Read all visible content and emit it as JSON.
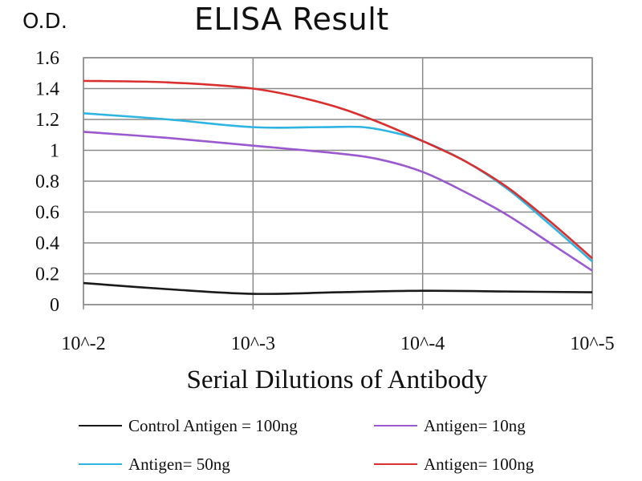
{
  "chart_data": {
    "type": "line",
    "title": "ELISA Result",
    "ylabel": "O.D.",
    "xlabel": "Serial Dilutions of Antibody",
    "categories": [
      "10^-2",
      "10^-3",
      "10^-4",
      "10^-5"
    ],
    "ylim": [
      0,
      1.6
    ],
    "yticks": [
      "0",
      "0.2",
      "0.4",
      "0.6",
      "0.8",
      "1",
      "1.2",
      "1.4",
      "1.6"
    ],
    "grid": true,
    "legend_position": "bottom",
    "series": [
      {
        "name": "Control Antigen = 100ng",
        "color": "#1a1a1a",
        "values": [
          0.14,
          0.07,
          0.09,
          0.08
        ],
        "curve": [
          [
            0,
            0.14
          ],
          [
            0.5,
            0.1
          ],
          [
            1,
            0.07
          ],
          [
            1.5,
            0.08
          ],
          [
            2,
            0.09
          ],
          [
            2.5,
            0.085
          ],
          [
            3,
            0.08
          ]
        ]
      },
      {
        "name": "Antigen= 10ng",
        "color": "#9b59d0",
        "values": [
          1.12,
          1.03,
          0.86,
          0.22
        ],
        "curve": [
          [
            0,
            1.12
          ],
          [
            0.5,
            1.08
          ],
          [
            1,
            1.03
          ],
          [
            1.5,
            0.98
          ],
          [
            1.75,
            0.94
          ],
          [
            2,
            0.86
          ],
          [
            2.25,
            0.73
          ],
          [
            2.5,
            0.58
          ],
          [
            2.75,
            0.4
          ],
          [
            3,
            0.22
          ]
        ]
      },
      {
        "name": "Antigen= 50ng",
        "color": "#2eb4e0",
        "values": [
          1.24,
          1.15,
          1.06,
          0.28
        ],
        "curve": [
          [
            0,
            1.24
          ],
          [
            0.5,
            1.2
          ],
          [
            1,
            1.15
          ],
          [
            1.4,
            1.15
          ],
          [
            1.65,
            1.15
          ],
          [
            1.85,
            1.11
          ],
          [
            2,
            1.06
          ],
          [
            2.25,
            0.93
          ],
          [
            2.5,
            0.75
          ],
          [
            2.75,
            0.52
          ],
          [
            3,
            0.28
          ]
        ]
      },
      {
        "name": "Antigen= 100ng",
        "color": "#d9302f",
        "values": [
          1.45,
          1.4,
          1.06,
          0.3
        ],
        "curve": [
          [
            0,
            1.45
          ],
          [
            0.5,
            1.44
          ],
          [
            1,
            1.4
          ],
          [
            1.4,
            1.31
          ],
          [
            1.7,
            1.2
          ],
          [
            2,
            1.06
          ],
          [
            2.25,
            0.93
          ],
          [
            2.5,
            0.76
          ],
          [
            2.75,
            0.54
          ],
          [
            3,
            0.3
          ]
        ]
      }
    ]
  }
}
